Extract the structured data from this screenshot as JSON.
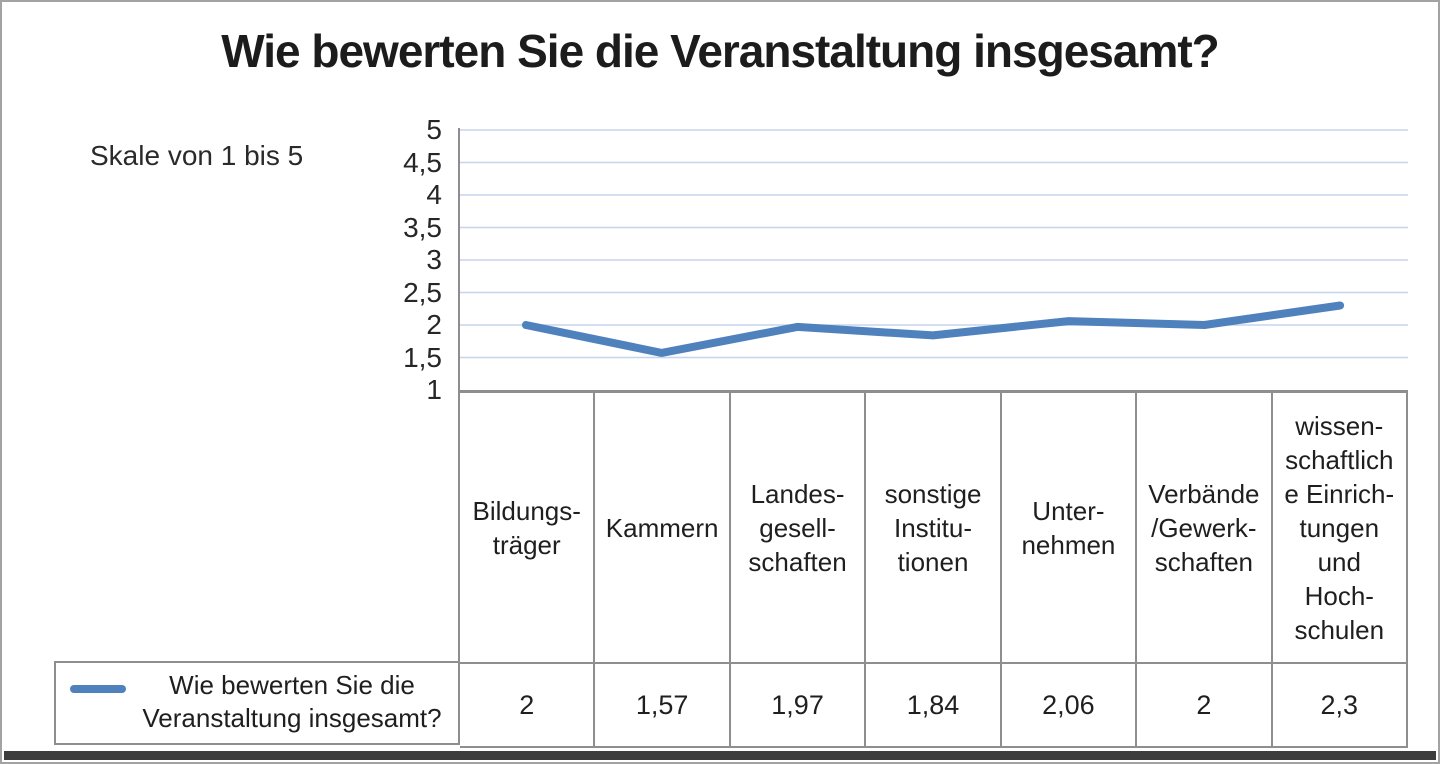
{
  "title": "Wie bewerten Sie die Veranstaltung insgesamt?",
  "scale_note": "Skale von 1 bis 5",
  "colors": {
    "line": "#4F81BD",
    "gridline": "#c5d5ee",
    "axis": "#8e8e8e",
    "table_border": "#8e8e8e",
    "bottom_bar": "#3d3d3d",
    "text": "#1f1f1f"
  },
  "chart_data": {
    "type": "line",
    "title": "Wie bewerten Sie die Veranstaltung insgesamt?",
    "categories": [
      "Bildungsträger",
      "Kammern",
      "Landesgesellschaften",
      "sonstige Institutionen",
      "Unternehmen",
      "Verbände/Gewerkschaften",
      "wissenschaftliche Einrichtungen und Hochschulen"
    ],
    "series": [
      {
        "name": "Wie bewerten Sie die Veranstaltung insgesamt?",
        "values": [
          2,
          1.57,
          1.97,
          1.84,
          2.06,
          2,
          2.3
        ]
      }
    ],
    "ylim": [
      1,
      5
    ],
    "ytick_step": 0.5,
    "ytick_labels": [
      "5",
      "4,5",
      "4",
      "3,5",
      "3",
      "2,5",
      "2",
      "1,5",
      "1"
    ],
    "grid": true,
    "legend_position": "bottom-left"
  },
  "table": {
    "headers_display": [
      "Bildungs-\nträger",
      "Kammern",
      "Landes-\ngesell-\nschaften",
      "sonstige\nInstitu-\ntionen",
      "Unter-\nnehmen",
      "Verbände\n/Gewerk-\nschaften",
      "wissen-\nschaftlich\ne Einrich-\ntungen\nund\nHoch-\nschulen"
    ],
    "values_display": [
      "2",
      "1,57",
      "1,97",
      "1,84",
      "2,06",
      "2",
      "2,3"
    ]
  },
  "legend": {
    "label": "Wie bewerten Sie die\nVeranstaltung insgesamt?"
  }
}
